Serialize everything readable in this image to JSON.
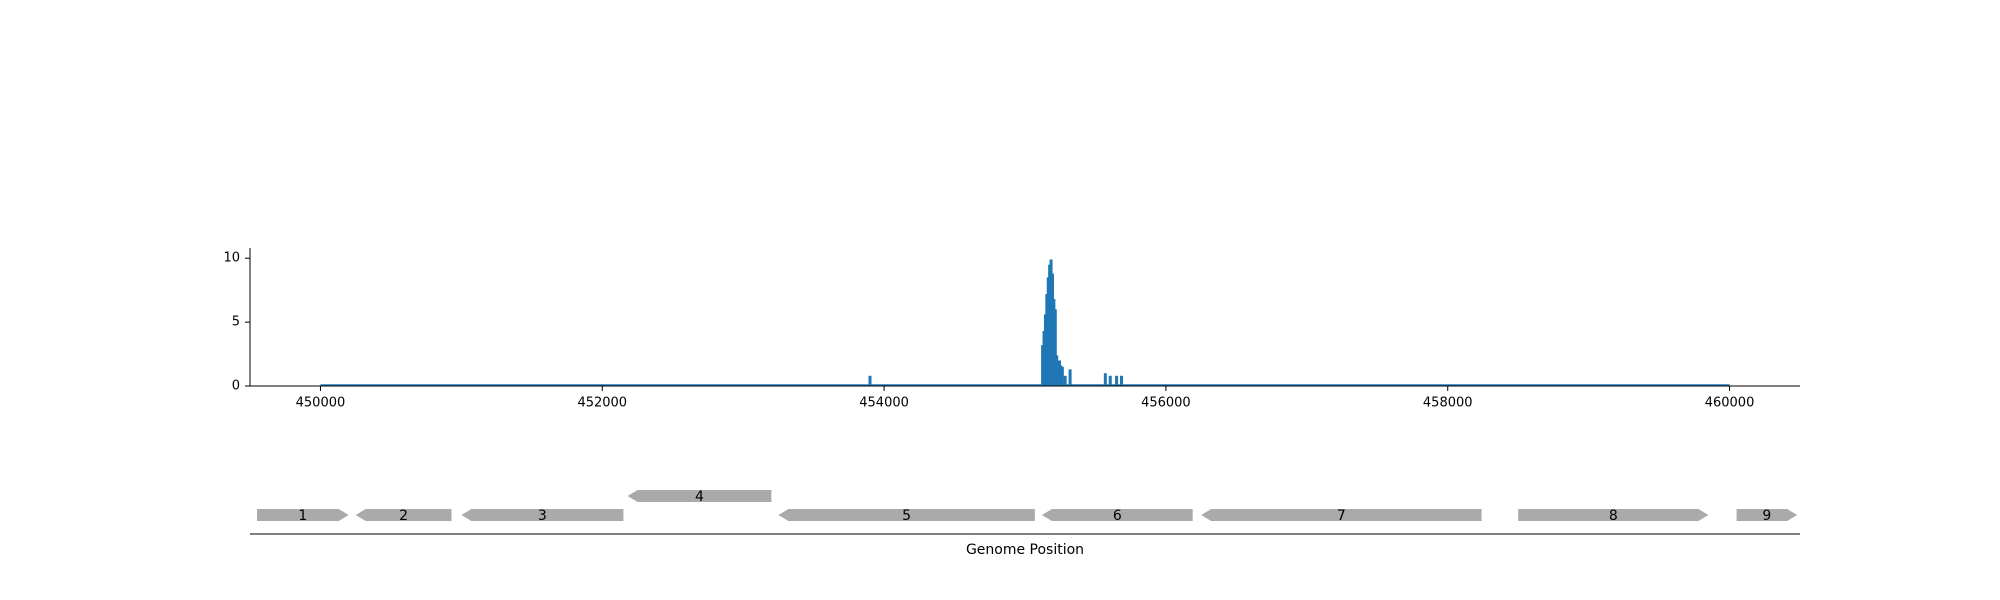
{
  "chart_data": {
    "type": "bar",
    "xlabel": "Genome Position",
    "ylabel": "",
    "xlim": [
      449500,
      460500
    ],
    "ylim": [
      0,
      10.8
    ],
    "x_ticks": [
      450000,
      452000,
      454000,
      456000,
      458000,
      460000
    ],
    "x_tick_labels": [
      "450000",
      "452000",
      "454000",
      "456000",
      "458000",
      "460000"
    ],
    "y_ticks": [
      0,
      5,
      10
    ],
    "y_tick_labels": [
      "0",
      "5",
      "10"
    ],
    "baseline": {
      "start": 450000,
      "end": 460000
    },
    "series": [
      {
        "color": "#1f77b4",
        "x": [
          453900,
          455125,
          455135,
          455145,
          455155,
          455165,
          455175,
          455185,
          455195,
          455205,
          455215,
          455225,
          455235,
          455245,
          455255,
          455265,
          455285,
          455320,
          455570,
          455605,
          455650,
          455685
        ],
        "values": [
          0.8,
          3.2,
          4.3,
          5.6,
          7.2,
          8.5,
          9.5,
          9.9,
          8.8,
          6.8,
          6.0,
          2.4,
          1.8,
          2.0,
          1.6,
          1.5,
          0.8,
          1.3,
          1.0,
          0.8,
          0.8,
          0.8
        ]
      }
    ],
    "genes": [
      {
        "label": "1",
        "start": 449550,
        "end": 450200,
        "strand": "+",
        "row": 0
      },
      {
        "label": "2",
        "start": 450250,
        "end": 450930,
        "strand": "-",
        "row": 0
      },
      {
        "label": "3",
        "start": 451000,
        "end": 452150,
        "strand": "-",
        "row": 0
      },
      {
        "label": "4",
        "start": 452180,
        "end": 453200,
        "strand": "-",
        "row": 1
      },
      {
        "label": "5",
        "start": 453250,
        "end": 455070,
        "strand": "-",
        "row": 0
      },
      {
        "label": "6",
        "start": 455120,
        "end": 456190,
        "strand": "-",
        "row": 0
      },
      {
        "label": "7",
        "start": 456250,
        "end": 458240,
        "strand": "-",
        "row": 0
      },
      {
        "label": "8",
        "start": 458500,
        "end": 459850,
        "strand": "+",
        "row": 0
      },
      {
        "label": "9",
        "start": 460050,
        "end": 460480,
        "strand": "+",
        "row": 0
      }
    ]
  }
}
